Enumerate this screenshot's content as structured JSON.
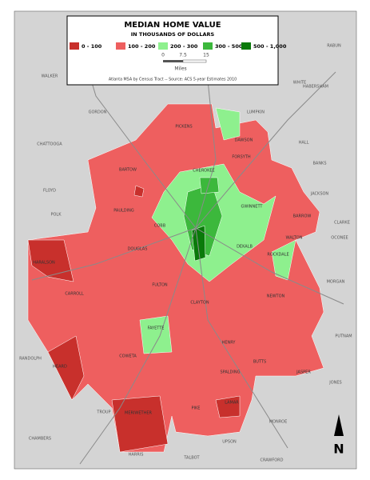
{
  "legend": {
    "title": "MEDIAN HOME VALUE",
    "subtitle": "IN THOUSANDS OF DOLLARS",
    "items": [
      {
        "label": "0 - 100",
        "color": "#c8302c"
      },
      {
        "label": "100 - 200",
        "color": "#ee5f5f"
      },
      {
        "label": "200 - 300",
        "color": "#8ef08e"
      },
      {
        "label": "300 - 500",
        "color": "#3cb83c"
      },
      {
        "label": "500 - 1,000",
        "color": "#0a7a0a"
      }
    ],
    "scale": {
      "ticks": [
        "0",
        "7.5",
        "15"
      ],
      "unit": "Miles"
    },
    "source": "Atlanta MSA by Census Tract -- Source: ACS 5-year Estimates 2010"
  },
  "counties": [
    "PICKENS",
    "DAWSON",
    "CHEROKEE",
    "FORSYTH",
    "BARTOW",
    "COBB",
    "GWINNETT",
    "BARROW",
    "PAULDING",
    "HARALSON",
    "DOUGLAS",
    "DEKALB",
    "WALTON",
    "ROCKDALE",
    "FULTON",
    "CLAYTON",
    "CARROLL",
    "NEWTON",
    "FAYETTE",
    "HENRY",
    "COWETA",
    "BUTTS",
    "JASPER",
    "HEARD",
    "SPALDING",
    "LAMAR",
    "PIKE",
    "MERIWETHER"
  ],
  "outside_counties": [
    "WALKER",
    "CHATTOOGA",
    "FLOYD",
    "POLK",
    "GORDON",
    "LUMPKIN",
    "WHITE",
    "HALL",
    "HABERSHAM",
    "RABUN",
    "BANKS",
    "JACKSON",
    "CLARKE",
    "OCONEE",
    "MORGAN",
    "PUTNAM",
    "JONES",
    "MONROE",
    "UPSON",
    "TROUP",
    "CHAMBERS",
    "RANDOLPH",
    "HARRIS",
    "TALBOT",
    "CRAWFORD"
  ],
  "north": "N"
}
